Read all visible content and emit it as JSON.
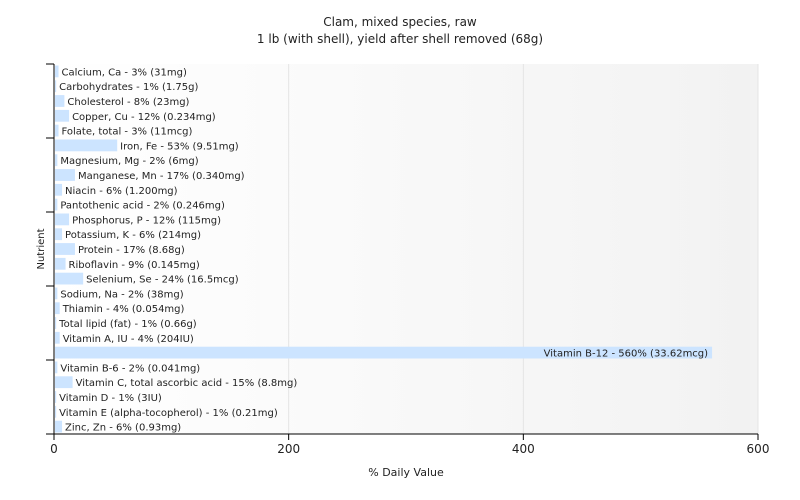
{
  "chart_data": {
    "type": "bar",
    "orientation": "horizontal",
    "title": "Clam, mixed species, raw",
    "subtitle": "1 lb (with shell), yield after shell removed (68g)",
    "xlabel": "% Daily Value",
    "ylabel": "Nutrient",
    "xlim": [
      0,
      600
    ],
    "xticks": [
      0,
      200,
      400,
      600
    ],
    "grid": true,
    "bar_color": "#cce4ff",
    "categories": [
      "Calcium, Ca",
      "Carbohydrates",
      "Cholesterol",
      "Copper, Cu",
      "Folate, total",
      "Iron, Fe",
      "Magnesium, Mg",
      "Manganese, Mn",
      "Niacin",
      "Pantothenic acid",
      "Phosphorus, P",
      "Potassium, K",
      "Protein",
      "Riboflavin",
      "Selenium, Se",
      "Sodium, Na",
      "Thiamin",
      "Total lipid (fat)",
      "Vitamin A, IU",
      "Vitamin B-12",
      "Vitamin B-6",
      "Vitamin C, total ascorbic acid",
      "Vitamin D",
      "Vitamin E (alpha-tocopherol)",
      "Zinc, Zn"
    ],
    "values": [
      3,
      1,
      8,
      12,
      3,
      53,
      2,
      17,
      6,
      2,
      12,
      6,
      17,
      9,
      24,
      2,
      4,
      1,
      4,
      560,
      2,
      15,
      1,
      1,
      6
    ],
    "labels": [
      "Calcium, Ca - 3% (31mg)",
      "Carbohydrates - 1% (1.75g)",
      "Cholesterol - 8% (23mg)",
      "Copper, Cu - 12% (0.234mg)",
      "Folate, total - 3% (11mcg)",
      "Iron, Fe - 53% (9.51mg)",
      "Magnesium, Mg - 2% (6mg)",
      "Manganese, Mn - 17% (0.340mg)",
      "Niacin - 6% (1.200mg)",
      "Pantothenic acid - 2% (0.246mg)",
      "Phosphorus, P - 12% (115mg)",
      "Potassium, K - 6% (214mg)",
      "Protein - 17% (8.68g)",
      "Riboflavin - 9% (0.145mg)",
      "Selenium, Se - 24% (16.5mcg)",
      "Sodium, Na - 2% (38mg)",
      "Thiamin - 4% (0.054mg)",
      "Total lipid (fat) - 1% (0.66g)",
      "Vitamin A, IU - 4% (204IU)",
      "Vitamin B-12 - 560% (33.62mcg)",
      "Vitamin B-6 - 2% (0.041mg)",
      "Vitamin C, total ascorbic acid - 15% (8.8mg)",
      "Vitamin D - 1% (3IU)",
      "Vitamin E (alpha-tocopherol) - 1% (0.21mg)",
      "Zinc, Zn - 6% (0.93mg)"
    ]
  }
}
